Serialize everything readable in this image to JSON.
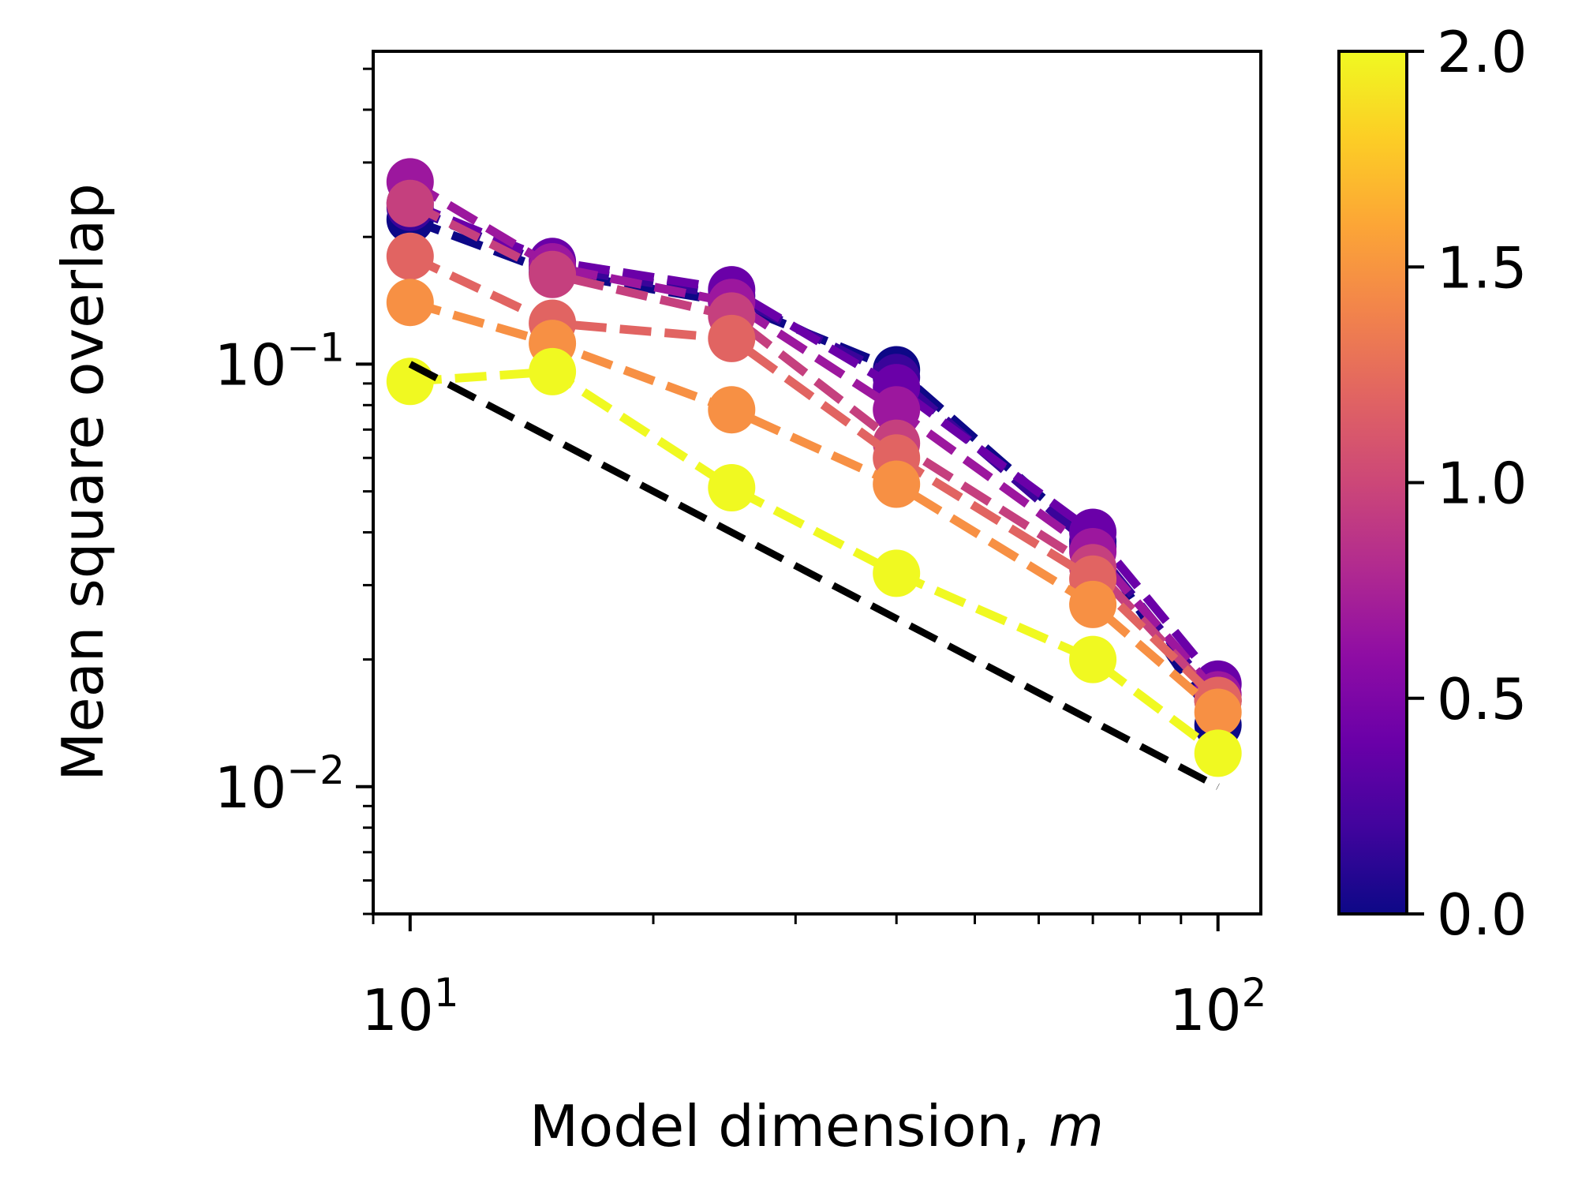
{
  "chart_data": {
    "type": "line",
    "xlabel": "Model dimension, ",
    "xlabel_var": "m",
    "ylabel": "Mean square overlap",
    "x_scale": "log",
    "y_scale": "log",
    "xlim": [
      9,
      113
    ],
    "ylim": [
      0.005,
      0.55
    ],
    "x_tick_labels": [
      {
        "base": "10",
        "exp": "1",
        "value": 10
      },
      {
        "base": "10",
        "exp": "2",
        "value": 100
      }
    ],
    "y_tick_labels": [
      {
        "base": "10",
        "exp": "−1",
        "value": 0.1
      },
      {
        "base": "10",
        "exp": "−2",
        "value": 0.01
      }
    ],
    "x": [
      10,
      15,
      25,
      40,
      70,
      100
    ],
    "grid": false,
    "legend": "none",
    "colormap": "plasma",
    "colorbar": {
      "range": [
        0.0,
        2.0
      ],
      "tick_labels": [
        "0.0",
        "0.5",
        "1.0",
        "1.5",
        "2.0"
      ],
      "tick_values": [
        0.0,
        0.5,
        1.0,
        1.5,
        2.0
      ]
    },
    "series": [
      {
        "color_value": 0.0,
        "color": "#0d0887",
        "values": [
          0.22,
          0.165,
          0.14,
          0.097,
          0.038,
          0.014
        ]
      },
      {
        "color_value": 0.25,
        "color": "#3a049a",
        "values": [
          0.235,
          0.17,
          0.145,
          0.093,
          0.037,
          0.016
        ]
      },
      {
        "color_value": 0.5,
        "color": "#6a00a8",
        "values": [
          0.24,
          0.175,
          0.15,
          0.088,
          0.04,
          0.0175
        ]
      },
      {
        "color_value": 0.75,
        "color": "#9c179e",
        "values": [
          0.27,
          0.17,
          0.14,
          0.078,
          0.036,
          0.0165
        ]
      },
      {
        "color_value": 1.0,
        "color": "#c5407e",
        "values": [
          0.24,
          0.163,
          0.13,
          0.065,
          0.033,
          0.016
        ]
      },
      {
        "color_value": 1.25,
        "color": "#e16462",
        "values": [
          0.18,
          0.125,
          0.115,
          0.06,
          0.031,
          0.016
        ]
      },
      {
        "color_value": 1.5,
        "color": "#f79044",
        "values": [
          0.14,
          0.112,
          0.078,
          0.052,
          0.027,
          0.015
        ]
      },
      {
        "color_value": 2.0,
        "color": "#f0f921",
        "values": [
          0.091,
          0.096,
          0.051,
          0.032,
          0.02,
          0.012
        ]
      }
    ],
    "reference_line": {
      "color": "#000000",
      "style": "dashed",
      "x": [
        10,
        100
      ],
      "values": [
        0.1,
        0.01
      ]
    }
  }
}
